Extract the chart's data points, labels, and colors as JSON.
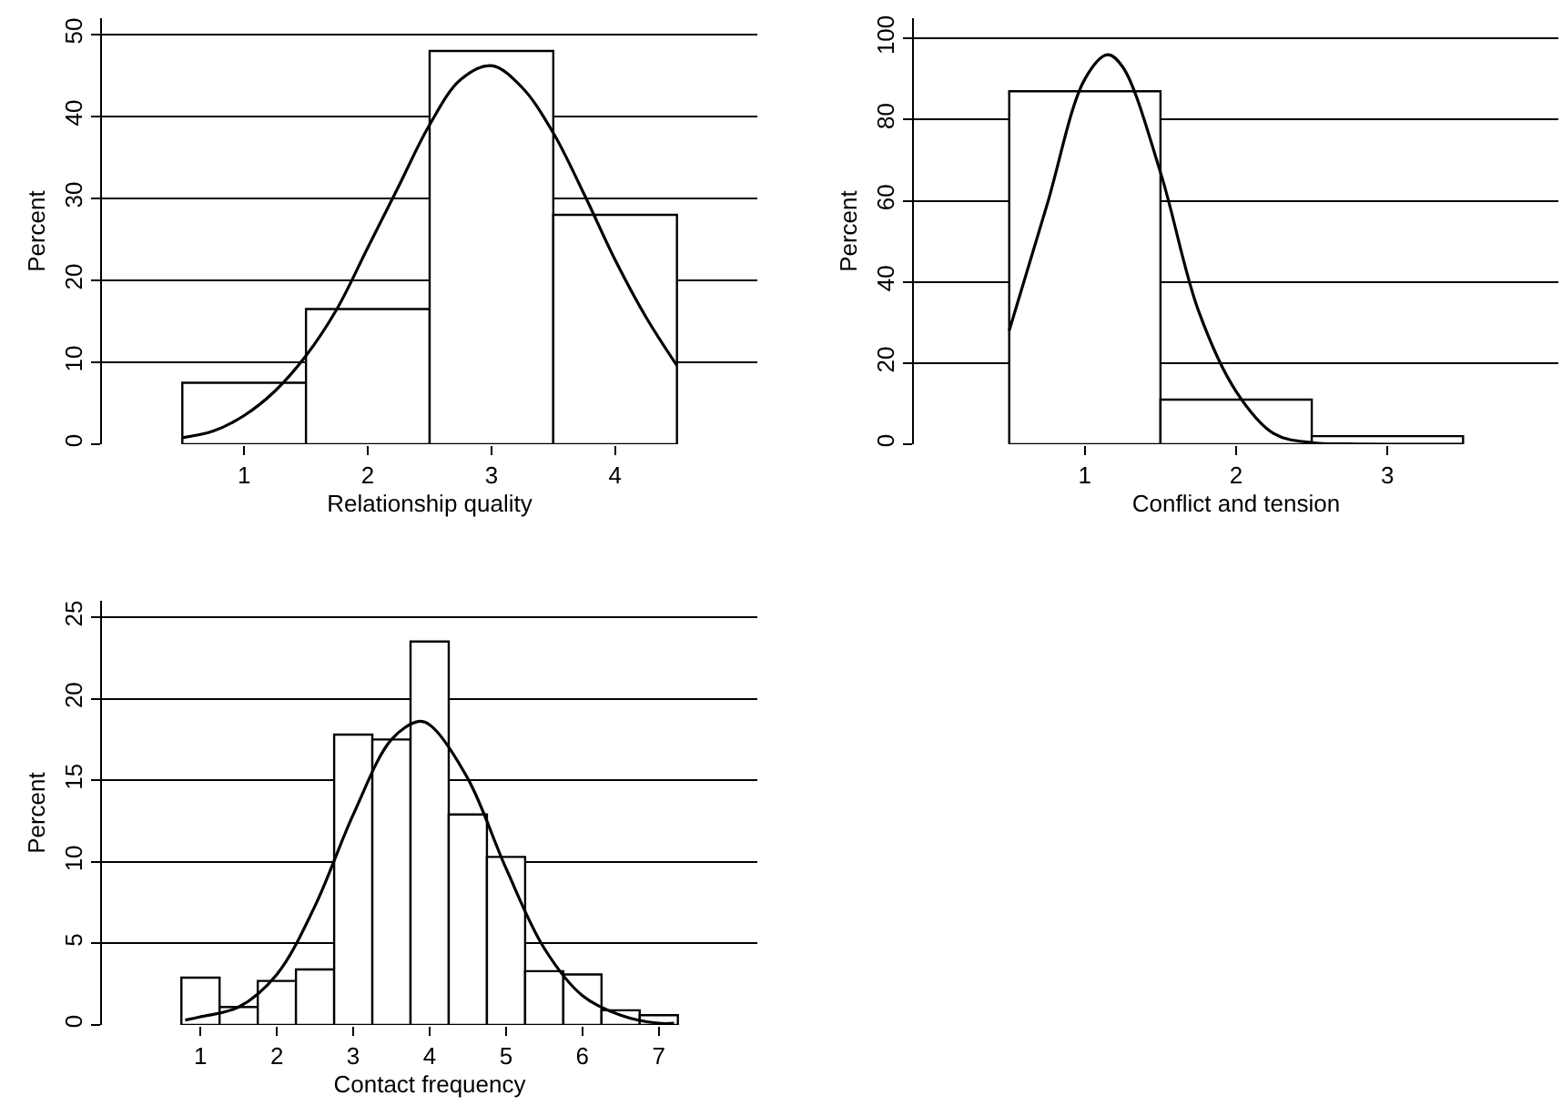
{
  "chart_data": [
    {
      "type": "histogram",
      "xlabel": "Relationship quality",
      "ylabel": "Percent",
      "xlim": [
        -0.15,
        5.15
      ],
      "xticks": [
        1,
        2,
        3,
        4
      ],
      "ylim": [
        0,
        52
      ],
      "yticks": [
        0,
        10,
        20,
        30,
        40,
        50
      ],
      "grid": "y",
      "series": [
        {
          "color": "#ffffff",
          "bins": [
            0.5,
            1.5,
            2.5,
            3.5,
            4.5
          ],
          "values": [
            7.5,
            16.5,
            48,
            28
          ]
        },
        {
          "type": "line",
          "color": "#000000",
          "x": [
            0.5,
            0.75,
            1.0,
            1.25,
            1.5,
            1.75,
            2.0,
            2.25,
            2.5,
            2.75,
            3.0,
            3.25,
            3.5,
            3.75,
            4.0,
            4.25,
            4.5
          ],
          "values": [
            0.8,
            1.6,
            3.5,
            6.5,
            10.8,
            16.5,
            24,
            31.5,
            39,
            44.5,
            46.2,
            43.5,
            38,
            30.5,
            22.5,
            15.5,
            9.6
          ]
        }
      ]
    },
    {
      "type": "histogram",
      "xlabel": "Conflict and tension",
      "ylabel": "Percent",
      "xlim": [
        -0.13,
        4.13
      ],
      "xticks": [
        1,
        2,
        3
      ],
      "ylim": [
        0,
        105
      ],
      "yticks": [
        0,
        20,
        40,
        60,
        80,
        100
      ],
      "grid": "y",
      "series": [
        {
          "color": "#ffffff",
          "bins": [
            0.5,
            1.5,
            2.5,
            3.5
          ],
          "values": [
            87,
            11,
            2
          ]
        },
        {
          "type": "line",
          "color": "#000000",
          "x": [
            0.5,
            0.75,
            1.0,
            1.15,
            1.25,
            1.5,
            1.75,
            2.0,
            2.25,
            2.5,
            2.75,
            3.0,
            3.5
          ],
          "values": [
            28,
            59,
            90,
            96,
            93,
            67,
            33,
            13,
            2.6,
            0.4,
            0.1,
            0,
            0
          ]
        }
      ]
    },
    {
      "type": "histogram",
      "xlabel": "Contact frequency",
      "ylabel": "Percent",
      "xlim": [
        -0.29,
        8.29
      ],
      "xticks": [
        1,
        2,
        3,
        4,
        5,
        6,
        7
      ],
      "ylim": [
        0,
        26
      ],
      "yticks": [
        0,
        5,
        10,
        15,
        20,
        25
      ],
      "grid": "y",
      "series": [
        {
          "color": "#ffffff",
          "bins": [
            0.75,
            1.25,
            1.75,
            2.25,
            2.75,
            3.25,
            3.75,
            4.25,
            4.75,
            5.25,
            5.75,
            6.25,
            6.75,
            7.25
          ],
          "values": [
            2.9,
            1.1,
            2.7,
            3.4,
            17.8,
            17.5,
            23.5,
            12.9,
            10.3,
            3.3,
            3.1,
            0.9,
            0.6
          ]
        },
        {
          "type": "line",
          "color": "#000000",
          "x": [
            0.8,
            1.0,
            1.5,
            2.0,
            2.5,
            3.0,
            3.5,
            3.85,
            4.0,
            4.5,
            5.0,
            5.5,
            6.0,
            6.5,
            7.0,
            7.2
          ],
          "values": [
            0.3,
            0.5,
            1.1,
            3.1,
            7.3,
            12.9,
            17.5,
            18.6,
            18.4,
            15.1,
            9.6,
            4.7,
            1.8,
            0.6,
            0.1,
            0.1
          ]
        }
      ]
    }
  ]
}
